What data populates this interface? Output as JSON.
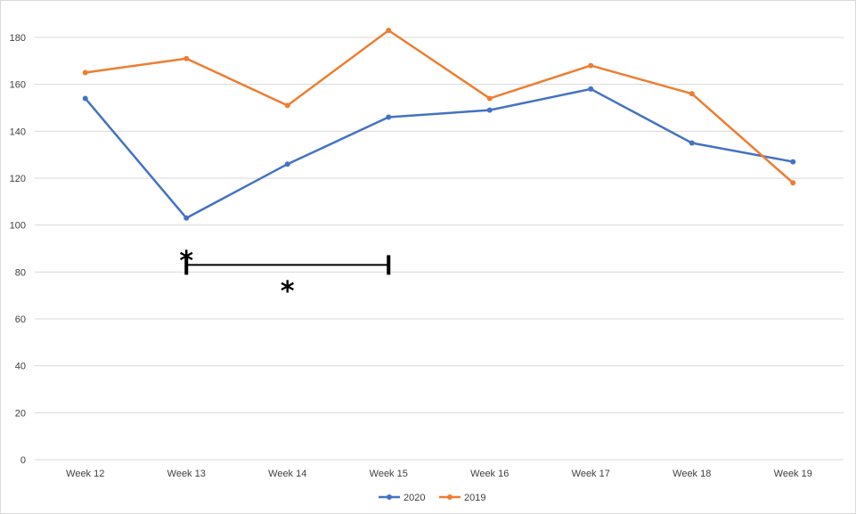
{
  "chart_data": {
    "type": "line",
    "categories": [
      "Week 12",
      "Week 13",
      "Week 14",
      "Week 15",
      "Week 16",
      "Week 17",
      "Week 18",
      "Week 19"
    ],
    "series": [
      {
        "name": "2020",
        "color": "#4472c4",
        "values": [
          154,
          103,
          126,
          146,
          149,
          158,
          135,
          127
        ]
      },
      {
        "name": "2019",
        "color": "#ed7d31",
        "values": [
          165,
          171,
          151,
          183,
          154,
          168,
          156,
          118
        ]
      }
    ],
    "ylim": [
      0,
      180
    ],
    "yticks": [
      0,
      20,
      40,
      60,
      80,
      100,
      120,
      140,
      160,
      180
    ],
    "grid": true,
    "legend_position": "bottom",
    "annotations": {
      "bracket": {
        "from": "Week 13",
        "to": "Week 15",
        "y": 83
      },
      "stars": [
        {
          "text": "*",
          "x": "Week 13",
          "y": 87
        },
        {
          "text": "*",
          "x": "Week 14",
          "y": 74
        }
      ]
    }
  }
}
